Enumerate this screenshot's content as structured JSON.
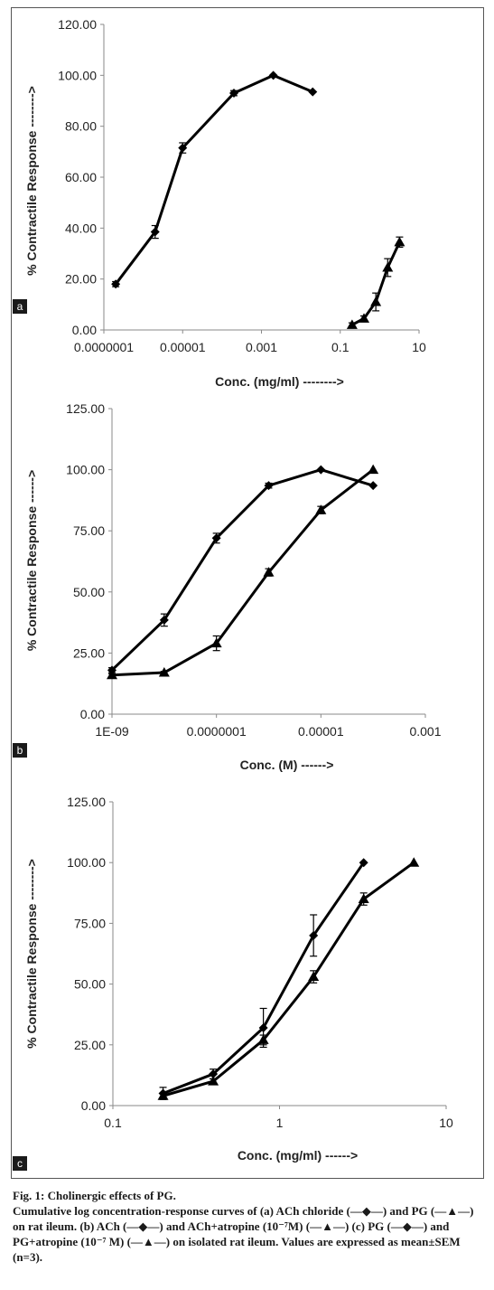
{
  "caption": {
    "title": "Fig. 1: Cholinergic effects of PG.",
    "body": "Cumulative log concentration-response curves of (a) ACh chloride (—◆—) and PG (—▲—) on rat ileum. (b) ACh (—◆—) and ACh+atropine (10⁻⁷M) (—▲—) (c) PG (—◆—) and PG+atropine (10⁻⁷ M) (—▲—) on isolated rat ileum. Values are expressed as mean±SEM (n=3)."
  },
  "chart_data": [
    {
      "panel": "a",
      "type": "line",
      "xscale": "log",
      "xlabel": "Conc. (mg/ml) -------->",
      "ylabel": "% Contractile Response -------->",
      "xlim": [
        1e-07,
        10
      ],
      "ylim": [
        0,
        120
      ],
      "xticks": [
        1e-07,
        1e-05,
        0.001,
        0.1,
        10
      ],
      "xtick_labels": [
        "0.0000001",
        "0.00001",
        "0.001",
        "0.1",
        "10"
      ],
      "yticks": [
        0,
        20,
        40,
        60,
        80,
        100,
        120
      ],
      "ytick_labels": [
        "0.00",
        "20.00",
        "40.00",
        "60.00",
        "80.00",
        "100.00",
        "120.00"
      ],
      "grid": false,
      "series": [
        {
          "marker": "diamond",
          "x": [
            2e-07,
            2e-06,
            1e-05,
            0.0002,
            0.002,
            0.02
          ],
          "y": [
            18,
            38.5,
            71.5,
            93,
            100,
            93.5
          ],
          "err": [
            1,
            2.5,
            2,
            1,
            0,
            0
          ]
        },
        {
          "marker": "triangle",
          "x": [
            0.2,
            0.4,
            0.8,
            1.6,
            3.2
          ],
          "y": [
            2,
            4.5,
            11,
            24.5,
            34.5
          ],
          "err": [
            0.8,
            1,
            3.5,
            3.5,
            2
          ]
        }
      ]
    },
    {
      "panel": "b",
      "type": "line",
      "xscale": "log",
      "xlabel": "Conc. (M) ------>",
      "ylabel": "% Contractile Response ------>",
      "xlim": [
        1e-09,
        0.001
      ],
      "ylim": [
        0,
        125
      ],
      "xticks": [
        1e-09,
        1e-07,
        1e-05,
        0.001
      ],
      "xtick_labels": [
        "1E-09",
        "0.0000001",
        "0.00001",
        "0.001"
      ],
      "yticks": [
        0,
        25,
        50,
        75,
        100,
        125
      ],
      "ytick_labels": [
        "0.00",
        "25.00",
        "50.00",
        "75.00",
        "100.00",
        "125.00"
      ],
      "grid": false,
      "series": [
        {
          "marker": "diamond",
          "x": [
            1e-09,
            1e-08,
            1e-07,
            1e-06,
            1e-05,
            0.0001
          ],
          "y": [
            18,
            38.5,
            72,
            93.5,
            100,
            93.5
          ],
          "err": [
            1,
            2.5,
            2,
            1,
            0,
            0
          ]
        },
        {
          "marker": "triangle",
          "x": [
            1e-09,
            1e-08,
            1e-07,
            1e-06,
            1e-05,
            0.0001
          ],
          "y": [
            16,
            17,
            29,
            58,
            83.5,
            100
          ],
          "err": [
            0.5,
            0.5,
            3,
            1.5,
            1.5,
            0
          ]
        }
      ]
    },
    {
      "panel": "c",
      "type": "line",
      "xscale": "log",
      "xlabel": "Conc. (mg/ml) ------>",
      "ylabel": "% Contractile Response -------->",
      "xlim": [
        0.1,
        10
      ],
      "ylim": [
        0,
        125
      ],
      "xticks": [
        0.1,
        1,
        10
      ],
      "xtick_labels": [
        "0.1",
        "1",
        "10"
      ],
      "yticks": [
        0,
        25,
        50,
        75,
        100,
        125
      ],
      "ytick_labels": [
        "0.00",
        "25.00",
        "50.00",
        "75.00",
        "100.00",
        "125.00"
      ],
      "grid": false,
      "series": [
        {
          "marker": "diamond",
          "x": [
            0.2,
            0.4,
            0.8,
            1.6,
            3.2
          ],
          "y": [
            5,
            13,
            32,
            70,
            100
          ],
          "err": [
            2.5,
            2,
            8,
            8.5,
            0
          ]
        },
        {
          "marker": "triangle",
          "x": [
            0.2,
            0.4,
            0.8,
            1.6,
            3.2,
            6.4
          ],
          "y": [
            4,
            10,
            27,
            53,
            85,
            100
          ],
          "err": [
            1,
            1,
            2,
            2.5,
            2.5,
            0
          ]
        }
      ]
    }
  ]
}
